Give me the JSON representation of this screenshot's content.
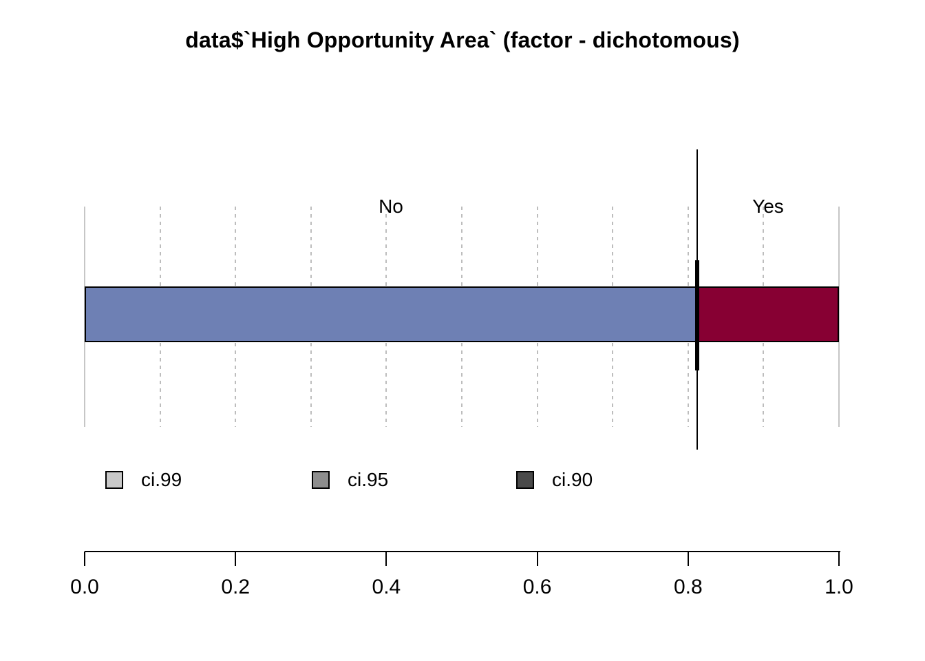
{
  "title": "data$`High Opportunity Area` (factor - dichotomous)",
  "chart_data": {
    "type": "bar",
    "subtype": "horizontal-stacked-proportion",
    "title": "data$`High Opportunity Area` (factor - dichotomous)",
    "categories": [
      "No",
      "Yes"
    ],
    "values": [
      0.812,
      0.188
    ],
    "bar_colors": [
      "#6e80b4",
      "#870033"
    ],
    "estimate": 0.812,
    "xlim": [
      0,
      1
    ],
    "x_ticks": [
      0.0,
      0.2,
      0.4,
      0.6,
      0.8,
      1.0
    ],
    "x_tick_labels": [
      "0.0",
      "0.2",
      "0.4",
      "0.6",
      "0.8",
      "1.0"
    ],
    "gridline_values": [
      0.0,
      0.1,
      0.2,
      0.3,
      0.4,
      0.5,
      0.6,
      0.7,
      0.8,
      0.9,
      1.0
    ],
    "grid": true,
    "legend_position": "bottom-left",
    "legend": [
      {
        "label": "ci.99",
        "color": "#c9c9c9"
      },
      {
        "label": "ci.95",
        "color": "#8e8e8e"
      },
      {
        "label": "ci.90",
        "color": "#4a4a4a"
      }
    ]
  }
}
